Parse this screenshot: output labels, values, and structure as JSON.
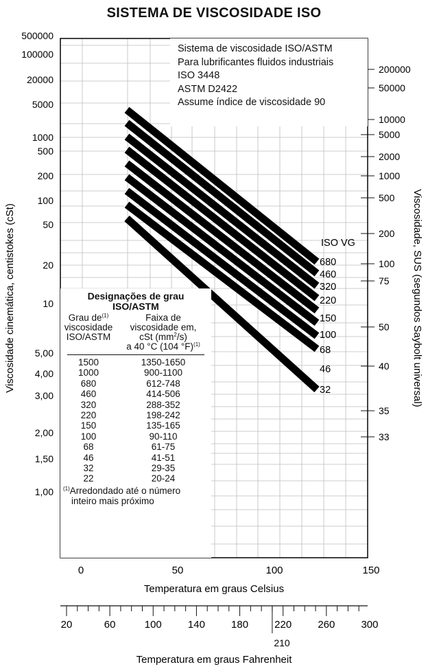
{
  "chart_data": {
    "type": "line",
    "title": "SISTEMA DE VISCOSIDADE ISO",
    "xlabel": "Temperatura em graus Celsius",
    "x2label": "Temperatura em graus Fahrenheit",
    "ylabel": "Viscosidade cinemática, centistokes (cSt)",
    "y2label": "Viscosidade, SUS (segundos Saybolt universal)",
    "xlim": [
      -10,
      150
    ],
    "x_ticks": [
      0,
      50,
      100,
      150
    ],
    "x2_ticks": [
      20,
      60,
      100,
      140,
      180,
      220,
      260,
      300
    ],
    "x2_extra_label": "210",
    "y_tick_labels": [
      "500000",
      "100000",
      "20000",
      "5000",
      "1000",
      "500",
      "200",
      "100",
      "50",
      "20",
      "10",
      "5,00",
      "4,00",
      "3,00",
      "2,00",
      "1,50",
      "1,00"
    ],
    "y2_tick_labels": [
      "200000",
      "50000",
      "10000",
      "5000",
      "2000",
      "1000",
      "500",
      "200",
      "100",
      "75",
      "50",
      "40",
      "35",
      "33"
    ],
    "grid": true,
    "series_label_header": "ISO VG",
    "series": [
      {
        "name": "680",
        "x": [
          20,
          120
        ],
        "y": [
          4500,
          94
        ]
      },
      {
        "name": "460",
        "x": [
          20,
          120
        ],
        "y": [
          2900,
          66
        ]
      },
      {
        "name": "320",
        "x": [
          20,
          120
        ],
        "y": [
          1950,
          47
        ]
      },
      {
        "name": "220",
        "x": [
          20,
          120
        ],
        "y": [
          1250,
          35
        ]
      },
      {
        "name": "150",
        "x": [
          20,
          120
        ],
        "y": [
          800,
          26
        ]
      },
      {
        "name": "100",
        "x": [
          20,
          120
        ],
        "y": [
          520,
          19
        ]
      },
      {
        "name": "68",
        "x": [
          20,
          120
        ],
        "y": [
          330,
          14
        ]
      },
      {
        "name": "46",
        "x": [
          20,
          120
        ],
        "y": [
          200,
          10
        ]
      },
      {
        "name": "32",
        "x": [
          20,
          120
        ],
        "y": [
          115,
          7.5
        ]
      }
    ]
  },
  "info_box": {
    "lines": [
      "Sistema de viscosidade ISO/ASTM",
      "Para lubrificantes fluidos industriais",
      "ISO 3448",
      "ASTM D2422",
      "Assume índice de viscosidade 90"
    ]
  },
  "grade_table": {
    "title1": "Designações de grau",
    "title2": "ISO/ASTM",
    "col1": [
      "Grau de",
      "viscosidade",
      "ISO/ASTM"
    ],
    "col2": [
      "Faixa de",
      "viscosidade em,",
      "cSt (mm",
      "/s)",
      "a 40 °C (104 °F)"
    ],
    "sup_mark": "(1)",
    "sq": "2",
    "rows": [
      {
        "grade": "1500",
        "range": "1350-1650"
      },
      {
        "grade": "1000",
        "range": "900-1100"
      },
      {
        "grade": "680",
        "range": "612-748"
      },
      {
        "grade": "460",
        "range": "414-506"
      },
      {
        "grade": "320",
        "range": "288-352"
      },
      {
        "grade": "220",
        "range": "198-242"
      },
      {
        "grade": "150",
        "range": "135-165"
      },
      {
        "grade": "100",
        "range": "90-110"
      },
      {
        "grade": "68",
        "range": "61-75"
      },
      {
        "grade": "46",
        "range": "41-51"
      },
      {
        "grade": "32",
        "range": "29-35"
      },
      {
        "grade": "22",
        "range": "20-24"
      }
    ],
    "note1": "Arredondado até o número",
    "note2": "inteiro mais próximo"
  }
}
